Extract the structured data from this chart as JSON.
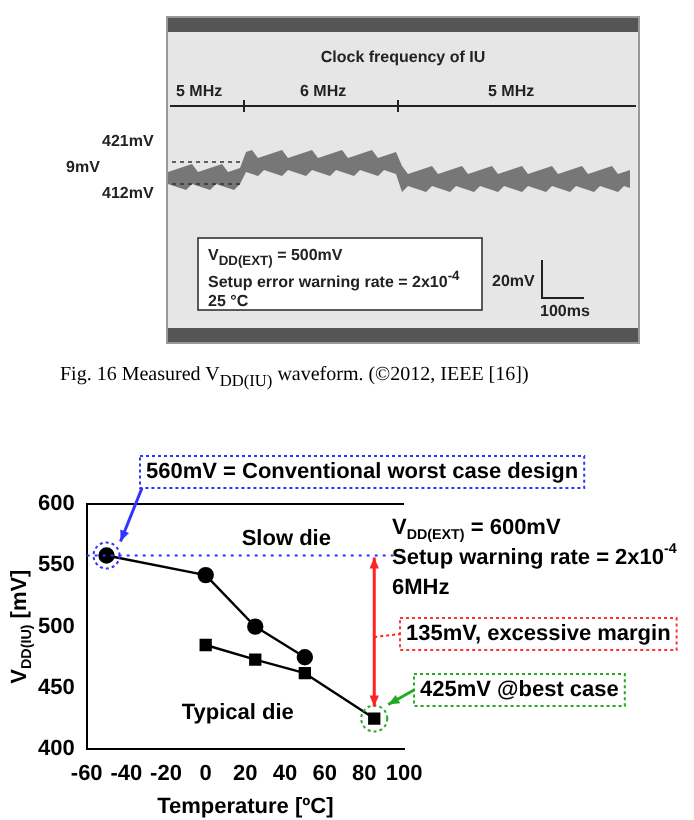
{
  "chart_data": [
    {
      "type": "other",
      "title": "Clock frequency of IU",
      "annotations": [
        "5 MHz",
        "6 MHz",
        "5 MHz",
        "421mV",
        "9mV",
        "412mV",
        "V$_{DD(EXT)}$ = 500mV",
        "Setup error warning rate = 2x10$^{-4}$",
        "25 °C",
        "20mV",
        "100ms",
        "Fig. 16     Measured V$_{DD(IU)}$ waveform. (©2012, IEEE [16])"
      ]
    },
    {
      "type": "line",
      "xlabel": "Temperature [ºC]",
      "ylabel": "V$_{DD(IU)}$ [mV]",
      "xlim": [
        -60,
        100
      ],
      "xticks": [
        -60,
        -40,
        -20,
        0,
        20,
        40,
        60,
        80,
        100
      ],
      "ylim": [
        400,
        600
      ],
      "yticks": [
        400,
        450,
        500,
        550,
        600
      ],
      "grid": false,
      "legend": false,
      "series": [
        {
          "name": "Slow die",
          "color": "#000000",
          "marker": "circle",
          "x": [
            -50,
            0,
            25,
            50
          ],
          "values": [
            558,
            542,
            500,
            475
          ]
        },
        {
          "name": "Typical die",
          "color": "#000000",
          "marker": "square",
          "x": [
            0,
            25,
            50,
            85
          ],
          "values": [
            485,
            473,
            462,
            425
          ]
        }
      ],
      "ref_lines": [
        {
          "axis": "y",
          "value": 558,
          "color": "#3333ff",
          "line_style": "dotted"
        }
      ],
      "annotations": [
        "560mV = Conventional worst case design",
        "V$_{DD(EXT)}$ = 600mV",
        "Setup warning rate = 2x10$^{-4}$",
        "6MHz",
        "135mV, excessive margin",
        "425mV @best case"
      ]
    }
  ]
}
